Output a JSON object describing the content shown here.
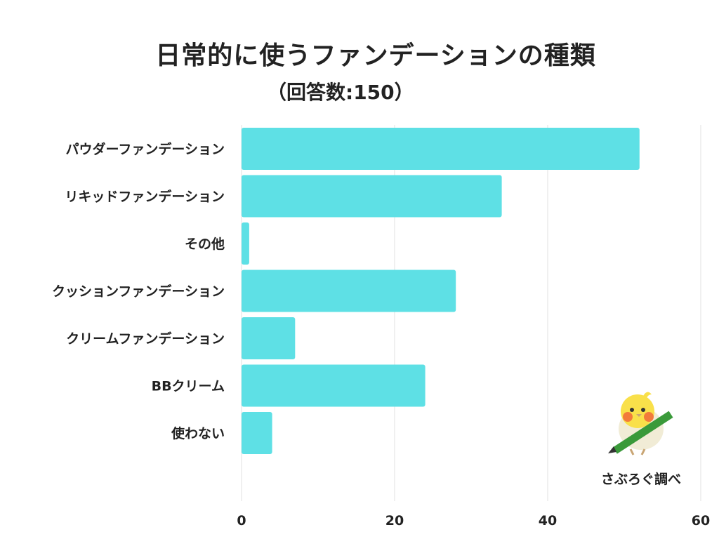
{
  "header": {
    "title": "日常的に使うファンデーションの種類",
    "subtitle": "（回答数:150）"
  },
  "credit": "さぶろぐ調べ",
  "colors": {
    "bar": "#5ee0e5",
    "grid": "#e0e0e0",
    "text": "#222222"
  },
  "chart_data": {
    "type": "bar",
    "orientation": "horizontal",
    "title": "日常的に使うファンデーションの種類",
    "subtitle": "（回答数:150）",
    "categories": [
      "パウダーファンデーション",
      "リキッドファンデーション",
      "その他",
      "クッションファンデーション",
      "クリームファンデーション",
      "BBクリーム",
      "使わない"
    ],
    "values": [
      52,
      34,
      1,
      28,
      7,
      24,
      4
    ],
    "xlim": [
      0,
      60
    ],
    "xticks": [
      0,
      20,
      40,
      60
    ],
    "grid": true,
    "legend": "none"
  }
}
